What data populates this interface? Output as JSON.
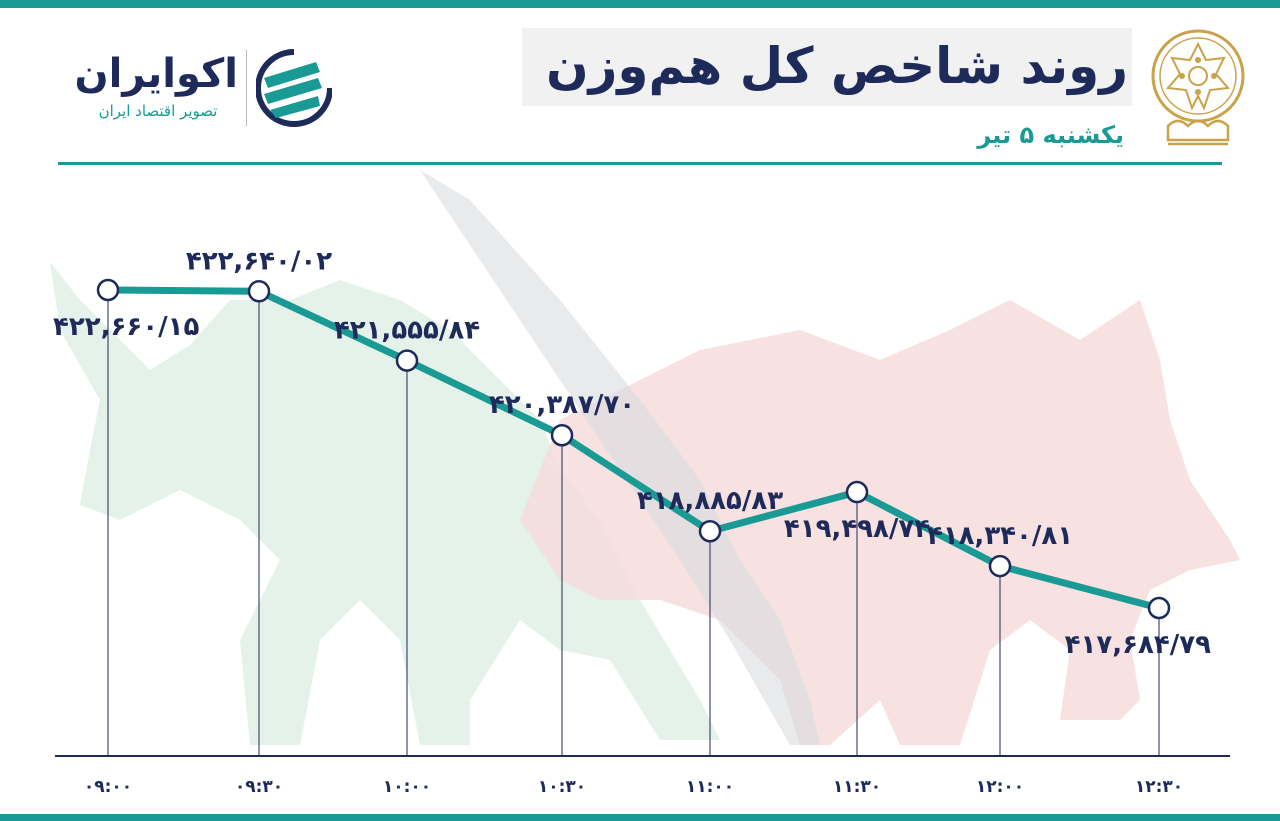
{
  "header": {
    "title": "روند شاخص کل هم‌وزن",
    "subtitle": "یکشنبه ۵ تیر"
  },
  "brand": {
    "name": "اکوایران",
    "tagline": "تصویر اقتصاد ایران"
  },
  "colors": {
    "accent": "#1a9a94",
    "navy": "#1e2a5a",
    "gold": "#c9a24a",
    "bull": "#dff0e6",
    "bear": "#f6dcdc"
  },
  "icons": [
    "tse-emblem-icon",
    "ecoiran-logo-icon",
    "bull-icon",
    "bear-icon"
  ],
  "chart_data": {
    "type": "line",
    "categories": [
      "۰۹:۰۰",
      "۰۹:۳۰",
      "۱۰:۰۰",
      "۱۰:۳۰",
      "۱۱:۰۰",
      "۱۱:۳۰",
      "۱۲:۰۰",
      "۱۲:۳۰"
    ],
    "values": [
      422660.15,
      422640.02,
      421555.84,
      420387.7,
      418885.83,
      419498.74,
      418340.81,
      417684.79
    ],
    "value_labels": [
      "۴۲۲,۶۶۰/۱۵",
      "۴۲۲,۶۴۰/۰۲",
      "۴۲۱,۵۵۵/۸۴",
      "۴۲۰,۳۸۷/۷۰",
      "۴۱۸,۸۸۵/۸۳",
      "۴۱۹,۴۹۸/۷۴",
      "۴۱۸,۳۴۰/۸۱",
      "۴۱۷,۶۸۴/۷۹"
    ],
    "label_placement": [
      "below",
      "above",
      "above",
      "above",
      "above",
      "below",
      "above",
      "below"
    ],
    "title": "روند شاخص کل هم‌وزن",
    "xlabel": "",
    "ylabel": "",
    "grid": false,
    "line_color": "#1a9a94"
  }
}
